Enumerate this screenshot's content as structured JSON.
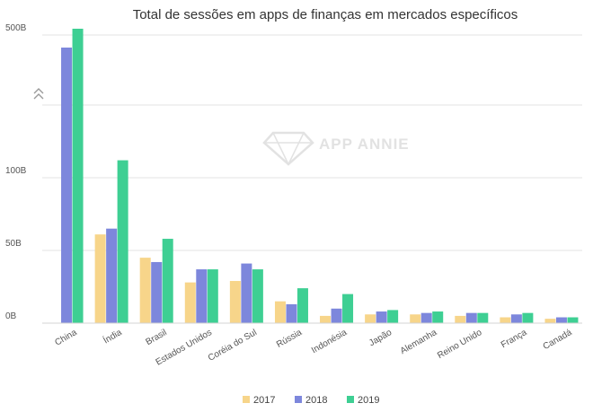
{
  "chart_data": {
    "type": "bar",
    "title": "Total de sessões em apps de finanças em mercados específicos",
    "xlabel": "",
    "ylabel": "",
    "axis_break": true,
    "yticks": [
      {
        "label": "0B",
        "value": 0
      },
      {
        "label": "50B",
        "value": 50
      },
      {
        "label": "100B",
        "value": 100
      },
      {
        "label": "500B",
        "value": 500
      }
    ],
    "categories": [
      "China",
      "Índia",
      "Brasil",
      "Estados Unidos",
      "Coréia do Sul",
      "Rússia",
      "Indonésia",
      "Japão",
      "Alemanha",
      "Reino Unido",
      "França",
      "Canadá"
    ],
    "series": [
      {
        "name": "2017",
        "color": "#f7d58a",
        "values": [
          null,
          61,
          45,
          28,
          29,
          15,
          5,
          6,
          6,
          5,
          4,
          3
        ]
      },
      {
        "name": "2018",
        "color": "#7d87dc",
        "values": [
          480,
          65,
          42,
          37,
          41,
          13,
          10,
          8,
          7,
          7,
          6,
          4
        ]
      },
      {
        "name": "2019",
        "color": "#3ecf93",
        "values": [
          510,
          112,
          58,
          37,
          37,
          24,
          20,
          9,
          8,
          7,
          7,
          4
        ]
      }
    ],
    "grid": true,
    "legend_position": "bottom-center",
    "watermark": "APP ANNIE"
  }
}
